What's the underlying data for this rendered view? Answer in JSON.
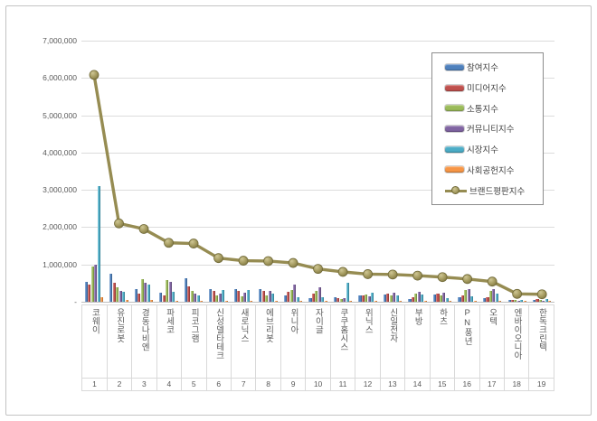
{
  "chart_data": {
    "type": "bar",
    "title": "",
    "categories": [
      "코웨이",
      "유진로봇",
      "경동나비엔",
      "파세코",
      "피코그램",
      "신성델타테크",
      "새로닉스",
      "에브리봇",
      "위니아",
      "자이글",
      "쿠쿠홈시스",
      "위닉스",
      "신일전자",
      "부방",
      "하츠",
      "PN풍년",
      "오텍",
      "엔바이오니아",
      "한독크린텍"
    ],
    "ranks": [
      "1",
      "2",
      "3",
      "4",
      "5",
      "6",
      "7",
      "8",
      "9",
      "10",
      "11",
      "12",
      "13",
      "14",
      "15",
      "16",
      "17",
      "18",
      "19"
    ],
    "series": [
      {
        "name": "참여지수",
        "type": "bar",
        "color": "#4F81BD",
        "values": [
          530000,
          750000,
          350000,
          250000,
          630000,
          330000,
          350000,
          330000,
          180000,
          100000,
          120000,
          170000,
          200000,
          80000,
          200000,
          110000,
          90000,
          50000,
          50000
        ]
      },
      {
        "name": "미디어지수",
        "type": "bar",
        "color": "#C0504D",
        "values": [
          450000,
          520000,
          210000,
          170000,
          410000,
          280000,
          300000,
          300000,
          260000,
          220000,
          100000,
          180000,
          210000,
          130000,
          230000,
          170000,
          130000,
          60000,
          70000
        ]
      },
      {
        "name": "소통지수",
        "type": "bar",
        "color": "#9BBB59",
        "values": [
          940000,
          380000,
          600000,
          590000,
          290000,
          180000,
          150000,
          160000,
          320000,
          280000,
          70000,
          200000,
          180000,
          220000,
          170000,
          310000,
          290000,
          40000,
          40000
        ]
      },
      {
        "name": "커뮤니티지수",
        "type": "bar",
        "color": "#8064A2",
        "values": [
          990000,
          280000,
          520000,
          530000,
          210000,
          220000,
          240000,
          280000,
          450000,
          380000,
          90000,
          150000,
          240000,
          270000,
          250000,
          350000,
          350000,
          30000,
          30000
        ]
      },
      {
        "name": "시장지수",
        "type": "bar",
        "color": "#4BACC6",
        "values": [
          3110000,
          260000,
          450000,
          260000,
          170000,
          310000,
          320000,
          210000,
          120000,
          120000,
          520000,
          240000,
          160000,
          200000,
          100000,
          150000,
          210000,
          60000,
          70000
        ]
      },
      {
        "name": "사회공헌지수",
        "type": "bar",
        "color": "#F79646",
        "values": [
          110000,
          50000,
          60000,
          30000,
          30000,
          30000,
          20000,
          20000,
          30000,
          20000,
          20000,
          20000,
          20000,
          20000,
          20000,
          20000,
          20000,
          10000,
          10000
        ]
      },
      {
        "name": "브랜드평판지수",
        "type": "line",
        "color": "#968C52",
        "marker_fill": "#A89E63",
        "values": [
          6080000,
          2100000,
          1950000,
          1580000,
          1560000,
          1170000,
          1100000,
          1090000,
          1040000,
          880000,
          800000,
          740000,
          730000,
          700000,
          660000,
          610000,
          540000,
          210000,
          200000
        ]
      }
    ],
    "ylim": [
      0,
      7000000
    ],
    "ytick_interval": 1000000,
    "ytick_labels": {
      "0": "-",
      "1000000": "1,000,000",
      "2000000": "2,000,000",
      "3000000": "3,000,000",
      "4000000": "4,000,000",
      "5000000": "5,000,000",
      "6000000": "6,000,000",
      "7000000": "7,000,000"
    },
    "grid": true,
    "legend_position": "top-right",
    "xlabel": "",
    "ylabel": ""
  }
}
